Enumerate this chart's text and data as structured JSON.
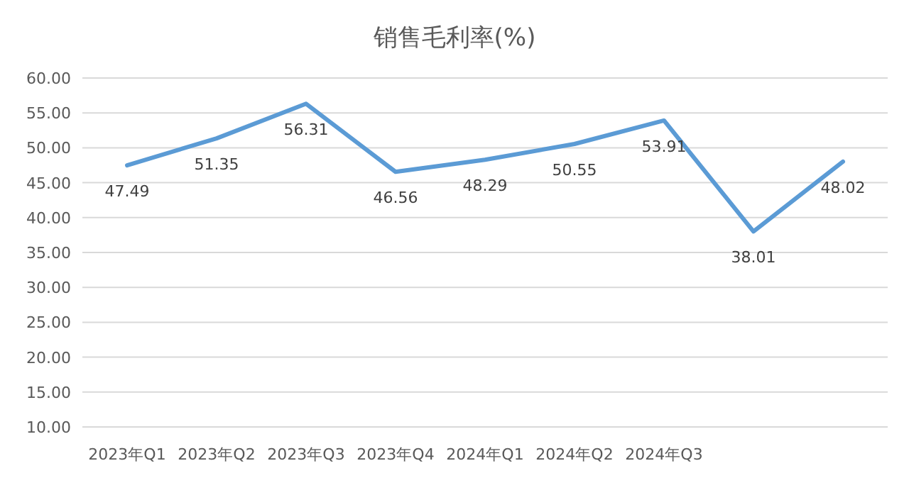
{
  "chart_data": {
    "type": "line",
    "title": "销售毛利率(%)",
    "categories": [
      "2023年Q1",
      "2023年Q2",
      "2023年Q3",
      "2023年Q4",
      "2024年Q1",
      "2024年Q2",
      "2024年Q3",
      null,
      null
    ],
    "series": [
      {
        "color": "#5b9bd5",
        "values": [
          47.49,
          51.35,
          56.31,
          46.56,
          48.29,
          50.55,
          53.91,
          38.01,
          48.02
        ]
      }
    ],
    "ylim": [
      10,
      60
    ],
    "yticks": [
      {
        "value": 10,
        "label": "10.00"
      },
      {
        "value": 15,
        "label": "15.00"
      },
      {
        "value": 20,
        "label": "20.00"
      },
      {
        "value": 25,
        "label": "25.00"
      },
      {
        "value": 30,
        "label": "30.00"
      },
      {
        "value": 35,
        "label": "35.00"
      },
      {
        "value": 40,
        "label": "40.00"
      },
      {
        "value": 45,
        "label": "45.00"
      },
      {
        "value": 50,
        "label": "50.00"
      },
      {
        "value": 55,
        "label": "55.00"
      },
      {
        "value": 60,
        "label": "60.00"
      }
    ],
    "grid": "y",
    "data_labels": true,
    "line_style": "solid"
  }
}
